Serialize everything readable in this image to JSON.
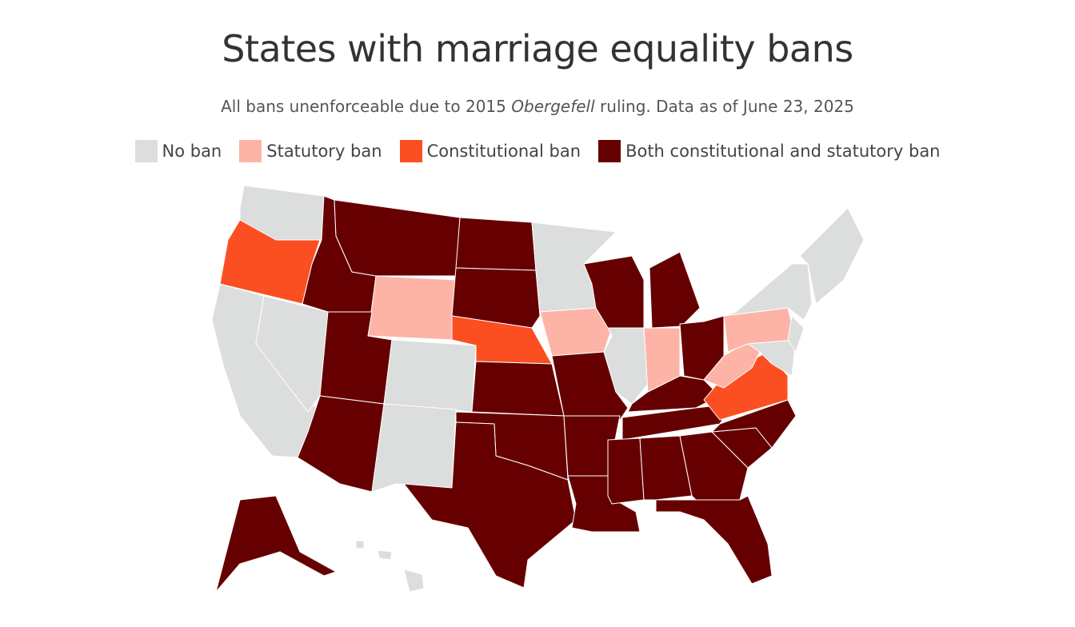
{
  "title": "States with marriage equality bans",
  "subtitle": {
    "before": "All bans unenforceable due to 2015 ",
    "italic": "Obergefell",
    "after": " ruling. Data as of June 23, 2025"
  },
  "legend": [
    {
      "label": "No ban",
      "color": "#dcdddd"
    },
    {
      "label": "Statutory ban",
      "color": "#fdb4a6"
    },
    {
      "label": "Constitutional ban",
      "color": "#fb4f22"
    },
    {
      "label": "Both constitutional and statutory ban",
      "color": "#660000"
    }
  ],
  "regions": [
    0,
    2,
    0,
    0,
    3,
    3,
    1,
    3,
    3,
    0,
    0,
    3,
    3,
    2,
    3,
    3,
    3,
    0,
    1,
    3,
    3,
    3,
    3,
    0,
    3,
    1,
    3,
    3,
    3,
    3,
    3,
    3,
    3,
    3,
    3,
    2,
    1,
    1,
    0,
    0,
    0,
    0,
    3,
    0,
    0,
    0
  ]
}
